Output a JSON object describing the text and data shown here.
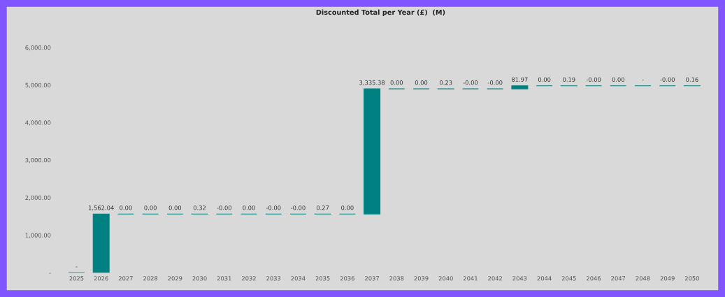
{
  "chart_data": {
    "type": "bar",
    "title": "Discounted Total per Year (£)  (M)",
    "categories": [
      "2025",
      "2026",
      "2027",
      "2028",
      "2029",
      "2030",
      "2031",
      "2032",
      "2033",
      "2034",
      "2035",
      "2036",
      "2037",
      "2038",
      "2039",
      "2040",
      "2041",
      "2042",
      "2043",
      "2044",
      "2045",
      "2046",
      "2047",
      "2048",
      "2049",
      "2050"
    ],
    "values": [
      0,
      1562.04,
      0,
      0,
      0,
      0.32,
      0,
      0,
      0,
      0,
      0.27,
      0,
      3335.38,
      0,
      0,
      0.23,
      0,
      0,
      81.97,
      0,
      0.19,
      0,
      0,
      0,
      0,
      0.16
    ],
    "base": [
      0,
      0,
      1562.04,
      1562.04,
      1562.04,
      1562.04,
      1562.36,
      1562.36,
      1562.36,
      1562.36,
      1562.36,
      1562.63,
      1562.63,
      4898.01,
      4898.01,
      4898.01,
      4898.24,
      4898.24,
      4898.24,
      4980.21,
      4980.21,
      4980.4,
      4980.4,
      4980.4,
      4980.4,
      4980.4
    ],
    "value_labels": [
      "-",
      "1,562.04",
      "0.00",
      "0.00",
      "0.00",
      "0.32",
      "-0.00",
      "0.00",
      "-0.00",
      "-0.00",
      "0.27",
      "0.00",
      "3,335.38",
      "0.00",
      "0.00",
      "0.23",
      "-0.00",
      "-0.00",
      "81.97",
      "0.00",
      "0.19",
      "-0.00",
      "0.00",
      "-",
      "-0.00",
      "0.16"
    ],
    "color": "#008080",
    "ylim": [
      0,
      6000
    ],
    "yticks": [
      {
        "value": 0,
        "label": "-"
      },
      {
        "value": 1000,
        "label": "1,000.00"
      },
      {
        "value": 2000,
        "label": "2,000.00"
      },
      {
        "value": 3000,
        "label": "3,000.00"
      },
      {
        "value": 4000,
        "label": "4,000.00"
      },
      {
        "value": 5000,
        "label": "5,000.00"
      },
      {
        "value": 6000,
        "label": "6,000.00"
      }
    ],
    "grid": false,
    "legend": false
  }
}
